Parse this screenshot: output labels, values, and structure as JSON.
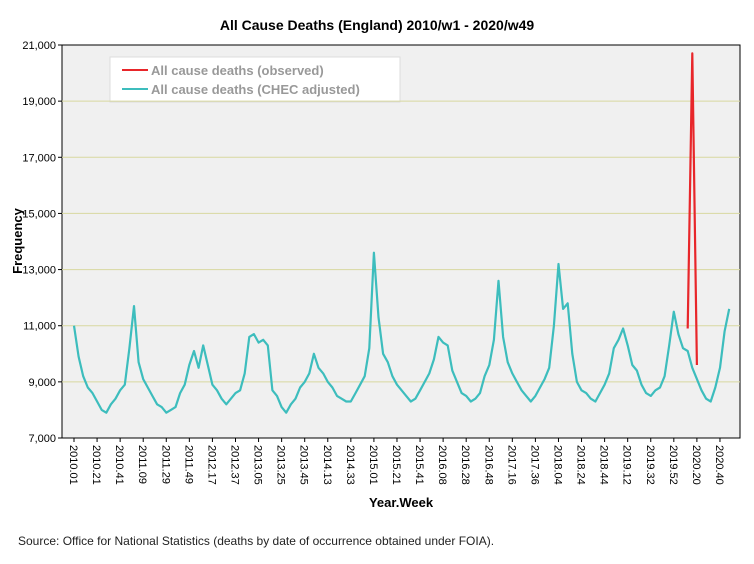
{
  "chart_data": {
    "type": "line",
    "title": "All Cause Deaths (England) 2010/w1 - 2020/w49",
    "xlabel": "Year.Week",
    "ylabel": "Frequency",
    "source": "Source: Office for National Statistics (deaths by date of occurrence obtained under FOIA).",
    "legend": "upper left",
    "grid": true,
    "ylim": [
      7000,
      21000
    ],
    "yticks": [
      {
        "value": 7000,
        "label": "7,000"
      },
      {
        "value": 9000,
        "label": "9,000"
      },
      {
        "value": 11000,
        "label": "11,000"
      },
      {
        "value": 13000,
        "label": "13,000"
      },
      {
        "value": 15000,
        "label": "15,000"
      },
      {
        "value": 17000,
        "label": "17,000"
      },
      {
        "value": 19000,
        "label": "19,000"
      },
      {
        "value": 21000,
        "label": "21,000"
      }
    ],
    "categories": [
      "2010.01",
      null,
      null,
      null,
      null,
      "2010.21",
      null,
      null,
      null,
      null,
      "2010.41",
      null,
      null,
      null,
      null,
      "2011.09",
      null,
      null,
      null,
      null,
      "2011.29",
      null,
      null,
      null,
      null,
      "2011.49",
      null,
      null,
      null,
      null,
      "2012.17",
      null,
      null,
      null,
      null,
      "2012.37",
      null,
      null,
      null,
      null,
      "2013.05",
      null,
      null,
      null,
      null,
      "2013.25",
      null,
      null,
      null,
      null,
      "2013.45",
      null,
      null,
      null,
      null,
      "2014.13",
      null,
      null,
      null,
      null,
      "2014.33",
      null,
      null,
      null,
      null,
      "2015.01",
      null,
      null,
      null,
      null,
      "2015.21",
      null,
      null,
      null,
      null,
      "2015.41",
      null,
      null,
      null,
      null,
      "2016.08",
      null,
      null,
      null,
      null,
      "2016.28",
      null,
      null,
      null,
      null,
      "2016.48",
      null,
      null,
      null,
      null,
      "2017.16",
      null,
      null,
      null,
      null,
      "2017.36",
      null,
      null,
      null,
      null,
      "2018.04",
      null,
      null,
      null,
      null,
      "2018.24",
      null,
      null,
      null,
      null,
      "2018.44",
      null,
      null,
      null,
      null,
      "2019.12",
      null,
      null,
      null,
      null,
      "2019.32",
      null,
      null,
      null,
      null,
      "2019.52",
      null,
      null,
      null,
      null,
      "2020.20",
      null,
      null,
      null,
      null,
      "2020.40",
      null,
      null
    ],
    "series": [
      {
        "name": "All cause deaths (observed)",
        "color": "#e8262a",
        "values": [
          null,
          null,
          null,
          null,
          null,
          null,
          null,
          null,
          null,
          null,
          null,
          null,
          null,
          null,
          null,
          null,
          null,
          null,
          null,
          null,
          null,
          null,
          null,
          null,
          null,
          null,
          null,
          null,
          null,
          null,
          null,
          null,
          null,
          null,
          null,
          null,
          null,
          null,
          null,
          null,
          null,
          null,
          null,
          null,
          null,
          null,
          null,
          null,
          null,
          null,
          null,
          null,
          null,
          null,
          null,
          null,
          null,
          null,
          null,
          null,
          null,
          null,
          null,
          null,
          null,
          null,
          null,
          null,
          null,
          null,
          null,
          null,
          null,
          null,
          null,
          null,
          null,
          null,
          null,
          null,
          null,
          null,
          null,
          null,
          null,
          null,
          null,
          null,
          null,
          null,
          null,
          null,
          null,
          null,
          null,
          null,
          null,
          null,
          null,
          null,
          null,
          null,
          null,
          null,
          null,
          null,
          null,
          null,
          null,
          null,
          null,
          null,
          null,
          null,
          null,
          null,
          null,
          null,
          null,
          null,
          null,
          null,
          null,
          null,
          null,
          null,
          null,
          null,
          null,
          null,
          null,
          null,
          null,
          10900,
          20700,
          9600,
          null,
          null,
          null,
          null,
          null,
          null,
          null
        ]
      },
      {
        "name": "All cause deaths (CHEC adjusted)",
        "color": "#3dbdbd",
        "values": [
          11000,
          9900,
          9200,
          8800,
          8600,
          8300,
          8000,
          7900,
          8200,
          8400,
          8700,
          8900,
          10200,
          11700,
          9700,
          9100,
          8800,
          8500,
          8200,
          8100,
          7900,
          8000,
          8100,
          8600,
          8900,
          9600,
          10100,
          9500,
          10300,
          9600,
          8900,
          8700,
          8400,
          8200,
          8400,
          8600,
          8700,
          9300,
          10600,
          10700,
          10400,
          10500,
          10300,
          8700,
          8500,
          8100,
          7900,
          8200,
          8400,
          8800,
          9000,
          9300,
          10000,
          9500,
          9300,
          9000,
          8800,
          8500,
          8400,
          8300,
          8300,
          8600,
          8900,
          9200,
          10200,
          13600,
          11300,
          10000,
          9700,
          9200,
          8900,
          8700,
          8500,
          8300,
          8400,
          8700,
          9000,
          9300,
          9800,
          10600,
          10400,
          10300,
          9400,
          9000,
          8600,
          8500,
          8300,
          8400,
          8600,
          9200,
          9600,
          10500,
          12600,
          10600,
          9700,
          9300,
          9000,
          8700,
          8500,
          8300,
          8500,
          8800,
          9100,
          9500,
          11000,
          13200,
          11600,
          11800,
          10000,
          9000,
          8700,
          8600,
          8400,
          8300,
          8600,
          8900,
          9300,
          10200,
          10500,
          10900,
          10300,
          9600,
          9400,
          8900,
          8600,
          8500,
          8700,
          8800,
          9200,
          10300,
          11500,
          10700,
          10200,
          10100,
          9500,
          9100,
          8700,
          8400,
          8300,
          8800,
          9500,
          10800,
          11600
        ]
      }
    ]
  }
}
